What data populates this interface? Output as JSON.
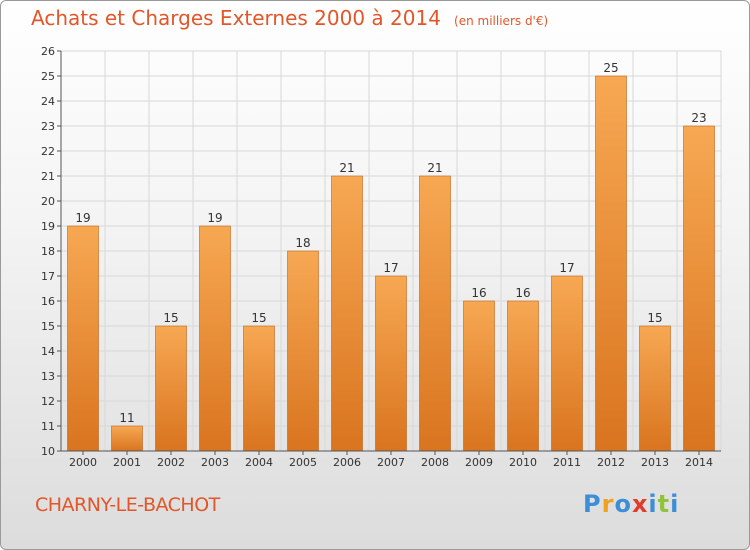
{
  "title": "Achats et Charges Externes 2000 à 2014",
  "unit": "(en milliers d'€)",
  "city": "CHARNY-LE-BACHOT",
  "logo": {
    "text": "Proxiti",
    "letters": [
      {
        "ch": "P",
        "color": "#3c8fd6"
      },
      {
        "ch": "r",
        "color": "#f0a21e"
      },
      {
        "ch": "o",
        "color": "#3c8fd6"
      },
      {
        "ch": "x",
        "color": "#e03c2a"
      },
      {
        "ch": "i",
        "color": "#3c8fd6"
      },
      {
        "ch": "t",
        "color": "#8fc43a"
      },
      {
        "ch": "i",
        "color": "#3c8fd6"
      }
    ]
  },
  "colors": {
    "title": "#e2562a",
    "bar_top": "#f7a853",
    "bar_bottom": "#d9741f",
    "bar_edge": "#c0651a",
    "grid": "#d8d8d8",
    "axis": "#555555",
    "text": "#333333"
  },
  "chart_data": {
    "type": "bar",
    "categories": [
      "2000",
      "2001",
      "2002",
      "2003",
      "2004",
      "2005",
      "2006",
      "2007",
      "2008",
      "2009",
      "2010",
      "2011",
      "2012",
      "2013",
      "2014"
    ],
    "values": [
      19,
      11,
      15,
      19,
      15,
      18,
      21,
      17,
      21,
      16,
      16,
      17,
      25,
      15,
      23
    ],
    "ylim": [
      10,
      26
    ],
    "yticks": [
      10,
      11,
      12,
      13,
      14,
      15,
      16,
      17,
      18,
      19,
      20,
      21,
      22,
      23,
      24,
      25,
      26
    ],
    "grid": true
  }
}
